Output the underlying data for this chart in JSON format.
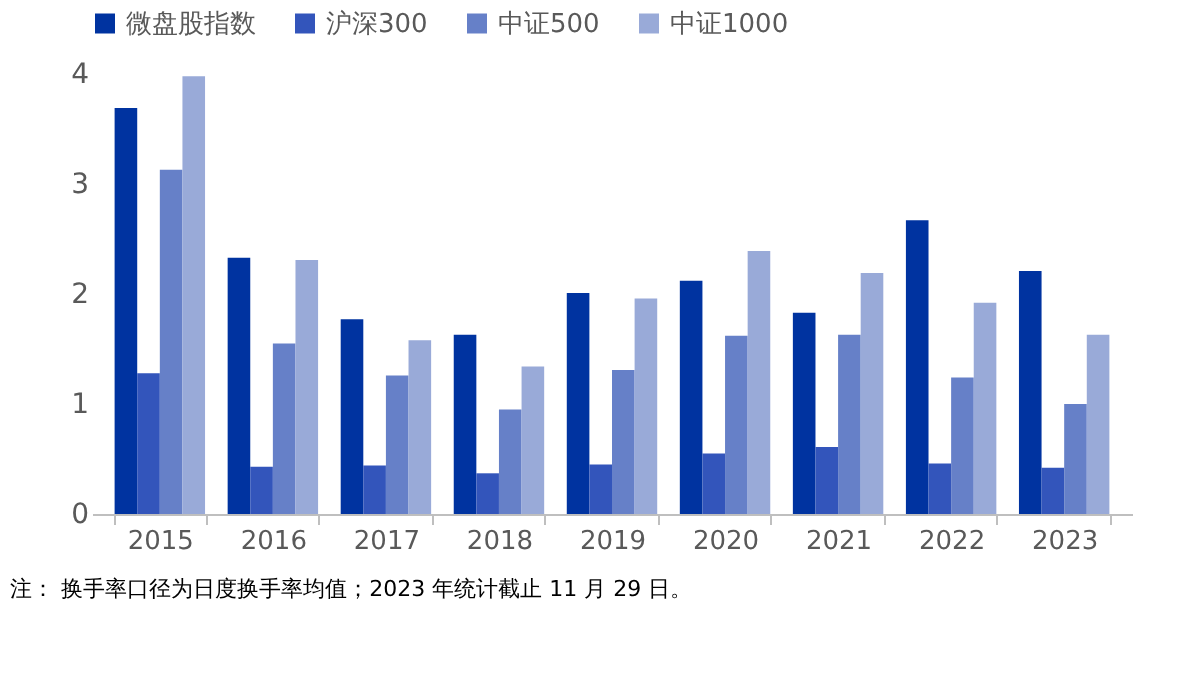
{
  "chart_data": {
    "type": "bar",
    "categories": [
      "2015",
      "2016",
      "2017",
      "2018",
      "2019",
      "2020",
      "2021",
      "2022",
      "2023"
    ],
    "series": [
      {
        "name": "微盘股指数",
        "color": "#0033a0",
        "values": [
          3.69,
          2.33,
          1.77,
          1.63,
          2.01,
          2.12,
          1.83,
          2.67,
          2.21
        ]
      },
      {
        "name": "沪深300",
        "color": "#3355bb",
        "values": [
          1.28,
          0.43,
          0.44,
          0.37,
          0.45,
          0.55,
          0.61,
          0.46,
          0.42
        ]
      },
      {
        "name": "中证500",
        "color": "#6680c8",
        "values": [
          3.13,
          1.55,
          1.26,
          0.95,
          1.31,
          1.62,
          1.63,
          1.24,
          1.0
        ]
      },
      {
        "name": "中证1000",
        "color": "#99aad8",
        "values": [
          3.98,
          2.31,
          1.58,
          1.34,
          1.96,
          2.39,
          2.19,
          1.92,
          1.63
        ]
      }
    ],
    "ylim": [
      0,
      4
    ],
    "yticks": [
      0,
      1,
      2,
      3,
      4
    ],
    "grid": false,
    "legend": "top",
    "annotations": [
      "注：  换手率口径为日度换手率均值；2023 年统计截止 11 月 29 日。"
    ]
  }
}
